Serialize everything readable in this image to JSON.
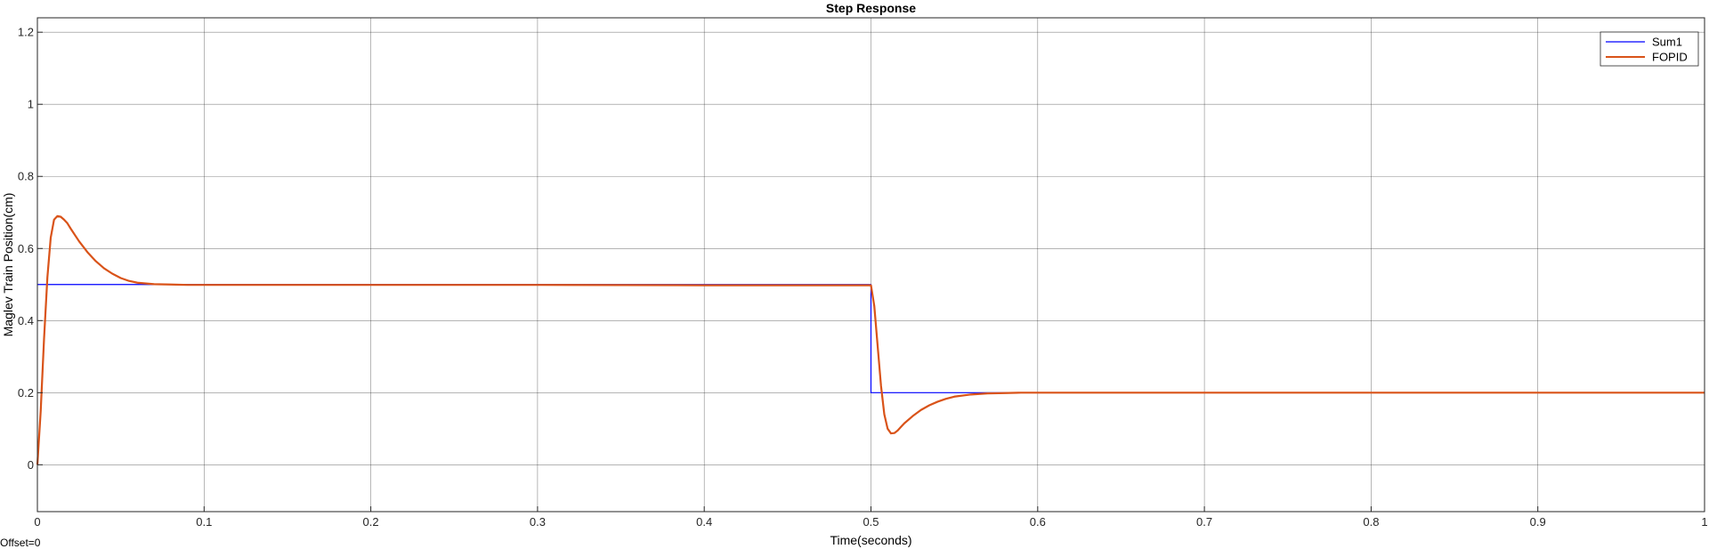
{
  "chart_data": {
    "type": "line",
    "title": "Step Response",
    "xlabel": "Time(seconds)",
    "ylabel": "Maglev Train Position(cm)",
    "xlim": [
      0,
      1
    ],
    "ylim": [
      -0.13,
      1.24
    ],
    "x_ticks": [
      0,
      0.1,
      0.2,
      0.3,
      0.4,
      0.5,
      0.6,
      0.7,
      0.8,
      0.9,
      1
    ],
    "x_tick_labels": [
      "0",
      "0.1",
      "0.2",
      "0.3",
      "0.4",
      "0.5",
      "0.6",
      "0.7",
      "0.8",
      "0.9",
      "1"
    ],
    "y_ticks": [
      0,
      0.2,
      0.4,
      0.6,
      0.8,
      1,
      1.2
    ],
    "y_tick_labels": [
      "0",
      "0.2",
      "0.4",
      "0.6",
      "0.8",
      "1",
      "1.2"
    ],
    "grid": true,
    "legend_position": "top-right",
    "series": [
      {
        "name": "Sum1",
        "color": "#0000ff",
        "x": [
          0,
          0.5,
          0.5,
          1
        ],
        "y": [
          0.5,
          0.5,
          0.2,
          0.2
        ]
      },
      {
        "name": "FOPID",
        "color": "#d95319",
        "x": [
          0,
          0.002,
          0.004,
          0.006,
          0.008,
          0.01,
          0.012,
          0.014,
          0.016,
          0.018,
          0.02,
          0.025,
          0.03,
          0.035,
          0.04,
          0.045,
          0.05,
          0.055,
          0.06,
          0.07,
          0.08,
          0.09,
          0.1,
          0.2,
          0.3,
          0.4,
          0.499,
          0.5,
          0.502,
          0.504,
          0.506,
          0.508,
          0.51,
          0.512,
          0.514,
          0.516,
          0.518,
          0.52,
          0.525,
          0.53,
          0.535,
          0.54,
          0.545,
          0.55,
          0.56,
          0.57,
          0.58,
          0.59,
          0.6,
          0.7,
          0.8,
          0.9,
          1.0
        ],
        "y": [
          0,
          0.15,
          0.35,
          0.52,
          0.63,
          0.68,
          0.69,
          0.688,
          0.68,
          0.67,
          0.655,
          0.62,
          0.59,
          0.565,
          0.545,
          0.53,
          0.518,
          0.51,
          0.505,
          0.501,
          0.5,
          0.499,
          0.499,
          0.499,
          0.499,
          0.498,
          0.498,
          0.498,
          0.44,
          0.33,
          0.22,
          0.14,
          0.1,
          0.087,
          0.088,
          0.095,
          0.105,
          0.115,
          0.135,
          0.152,
          0.165,
          0.175,
          0.183,
          0.189,
          0.195,
          0.198,
          0.199,
          0.2,
          0.2,
          0.2,
          0.2,
          0.2,
          0.2
        ]
      }
    ],
    "annotations": [
      "Offset=0"
    ]
  }
}
